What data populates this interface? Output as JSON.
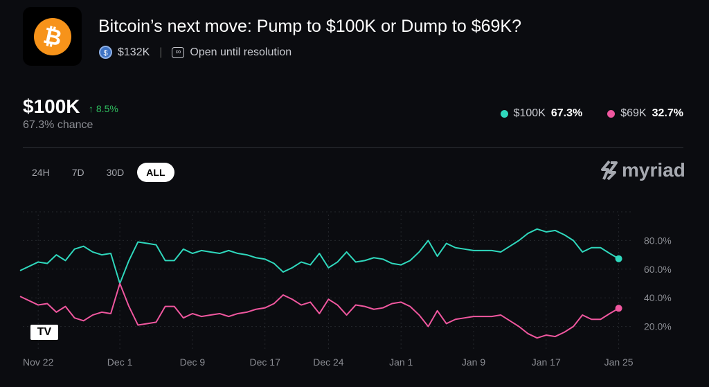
{
  "header": {
    "title": "Bitcoin’s next move: Pump to $100K or Dump to $69K?",
    "volume": "$132K",
    "status": "Open until resolution",
    "icon": "bitcoin-icon"
  },
  "summary": {
    "price": "$100K",
    "change": "↑ 8.5%",
    "chance": "67.3% chance"
  },
  "legend": [
    {
      "label": "$100K",
      "value": "67.3%",
      "color": "#2fd8bd"
    },
    {
      "label": "$69K",
      "value": "32.7%",
      "color": "#f0579f"
    }
  ],
  "tabs": [
    "24H",
    "7D",
    "30D",
    "ALL"
  ],
  "active_tab": "ALL",
  "brand": "myriad",
  "watermark": "TV",
  "chart_data": {
    "type": "line",
    "x_start": "Nov 20",
    "xticks": [
      {
        "label": "Nov 22",
        "index": 2
      },
      {
        "label": "Dec 1",
        "index": 11
      },
      {
        "label": "Dec 9",
        "index": 19
      },
      {
        "label": "Dec 17",
        "index": 27
      },
      {
        "label": "Dec 24",
        "index": 34
      },
      {
        "label": "Jan 1",
        "index": 42
      },
      {
        "label": "Jan 9",
        "index": 50
      },
      {
        "label": "Jan 17",
        "index": 58
      },
      {
        "label": "Jan 25",
        "index": 66
      }
    ],
    "yticks": [
      {
        "label": "80.0%",
        "value": 80
      },
      {
        "label": "60.0%",
        "value": 60
      },
      {
        "label": "40.0%",
        "value": 40
      },
      {
        "label": "20.0%",
        "value": 20
      }
    ],
    "ylim": [
      0,
      100
    ],
    "series": [
      {
        "name": "$100K",
        "color": "#2fd8bd",
        "values": [
          59,
          62,
          65,
          64,
          70,
          66,
          74,
          76,
          72,
          70,
          71,
          50,
          66,
          79,
          78,
          77,
          66,
          66,
          74,
          71,
          73,
          72,
          71,
          73,
          71,
          70,
          68,
          67,
          64,
          58,
          61,
          65,
          63,
          71,
          61,
          65,
          72,
          65,
          66,
          68,
          67,
          64,
          63,
          66,
          72,
          80,
          69,
          78,
          75,
          74,
          73,
          73,
          73,
          72,
          76,
          80,
          85,
          88,
          86,
          87,
          84,
          80,
          72,
          75,
          75,
          71,
          67.3
        ]
      },
      {
        "name": "$69K",
        "color": "#f0579f",
        "values": [
          41,
          38,
          35,
          36,
          30,
          34,
          26,
          24,
          28,
          30,
          29,
          50,
          34,
          21,
          22,
          23,
          34,
          34,
          26,
          29,
          27,
          28,
          29,
          27,
          29,
          30,
          32,
          33,
          36,
          42,
          39,
          35,
          37,
          29,
          39,
          35,
          28,
          35,
          34,
          32,
          33,
          36,
          37,
          34,
          28,
          20,
          31,
          22,
          25,
          26,
          27,
          27,
          27,
          28,
          24,
          20,
          15,
          12,
          14,
          13,
          16,
          20,
          28,
          25,
          25,
          29,
          32.7
        ]
      }
    ]
  }
}
